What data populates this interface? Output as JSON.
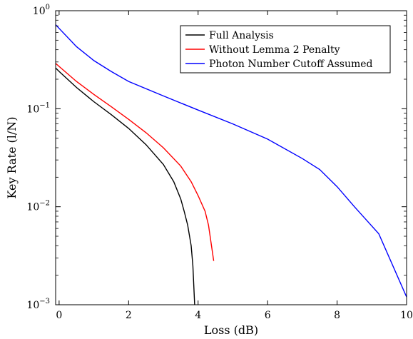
{
  "chart_data": {
    "type": "line",
    "title": "",
    "xlabel": "Loss (dB)",
    "ylabel": "Key Rate (l/N)",
    "xlim": [
      -0.1,
      10
    ],
    "ylim": [
      0.001,
      1
    ],
    "yscale": "log",
    "x_ticks": [
      0,
      2,
      4,
      6,
      8,
      10
    ],
    "x_tick_labels": [
      "0",
      "2",
      "4",
      "6",
      "8",
      "10"
    ],
    "y_ticks": [
      0.001,
      0.01,
      0.1,
      1
    ],
    "y_tick_labels": [
      {
        "base": "10",
        "exp": "−3"
      },
      {
        "base": "10",
        "exp": "−2"
      },
      {
        "base": "10",
        "exp": "−1"
      },
      {
        "base": "10",
        "exp": "0"
      }
    ],
    "grid": false,
    "legend_position": "top-right",
    "series": [
      {
        "name": "Full Analysis",
        "color": "#000000",
        "points": [
          [
            -0.1,
            0.26
          ],
          [
            0,
            0.24
          ],
          [
            0.5,
            0.165
          ],
          [
            1,
            0.118
          ],
          [
            1.5,
            0.087
          ],
          [
            2,
            0.063
          ],
          [
            2.5,
            0.043
          ],
          [
            3,
            0.027
          ],
          [
            3.3,
            0.018
          ],
          [
            3.5,
            0.012
          ],
          [
            3.6,
            0.009
          ],
          [
            3.7,
            0.0065
          ],
          [
            3.8,
            0.004
          ],
          [
            3.85,
            0.0025
          ],
          [
            3.9,
            0.001
          ]
        ]
      },
      {
        "name": "Without Lemma 2 Penalty",
        "color": "#ff0000",
        "points": [
          [
            -0.1,
            0.29
          ],
          [
            0,
            0.27
          ],
          [
            0.5,
            0.19
          ],
          [
            1,
            0.14
          ],
          [
            1.5,
            0.105
          ],
          [
            2,
            0.078
          ],
          [
            2.5,
            0.057
          ],
          [
            3,
            0.04
          ],
          [
            3.5,
            0.026
          ],
          [
            3.8,
            0.018
          ],
          [
            4,
            0.013
          ],
          [
            4.2,
            0.009
          ],
          [
            4.3,
            0.0065
          ],
          [
            4.45,
            0.0028
          ]
        ]
      },
      {
        "name": "Photon Number Cutoff Assumed",
        "color": "#0000ff",
        "points": [
          [
            -0.1,
            0.72
          ],
          [
            0,
            0.66
          ],
          [
            0.5,
            0.43
          ],
          [
            1,
            0.31
          ],
          [
            1.5,
            0.24
          ],
          [
            2,
            0.19
          ],
          [
            3,
            0.135
          ],
          [
            4,
            0.097
          ],
          [
            5,
            0.07
          ],
          [
            6,
            0.049
          ],
          [
            7,
            0.031
          ],
          [
            7.5,
            0.024
          ],
          [
            8,
            0.016
          ],
          [
            8.5,
            0.01
          ],
          [
            9.2,
            0.0053
          ],
          [
            10,
            0.0012
          ]
        ]
      }
    ]
  }
}
